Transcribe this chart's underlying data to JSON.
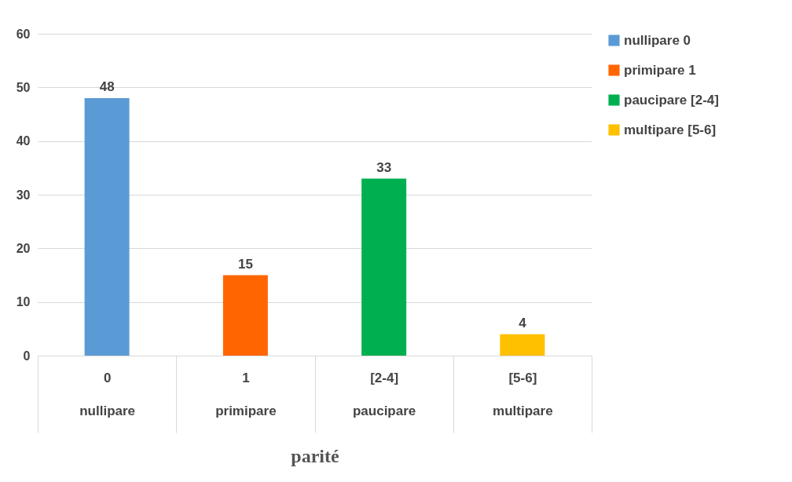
{
  "chart_data": {
    "type": "bar",
    "xlabel": "parité",
    "categories": [
      "0\nnullipare",
      "1\nprimipare",
      "[2-4]\npaucipare",
      "[5-6]\nmultipare"
    ],
    "series": [
      {
        "name": "nullipare  0",
        "color": "#5b9bd5",
        "values": [
          48,
          null,
          null,
          null
        ]
      },
      {
        "name": "primipare 1",
        "color": "#ff6600",
        "values": [
          null,
          15,
          null,
          null
        ]
      },
      {
        "name": "paucipare [2-4]",
        "color": "#00b050",
        "values": [
          null,
          null,
          33,
          null
        ]
      },
      {
        "name": "multipare [5-6]",
        "color": "#ffc000",
        "values": [
          null,
          null,
          null,
          4
        ]
      }
    ],
    "ylim": [
      0,
      60
    ],
    "yticks": [
      0,
      10,
      20,
      30,
      40,
      50,
      60
    ],
    "grid": "y",
    "legend": "right",
    "data_labels": true
  }
}
